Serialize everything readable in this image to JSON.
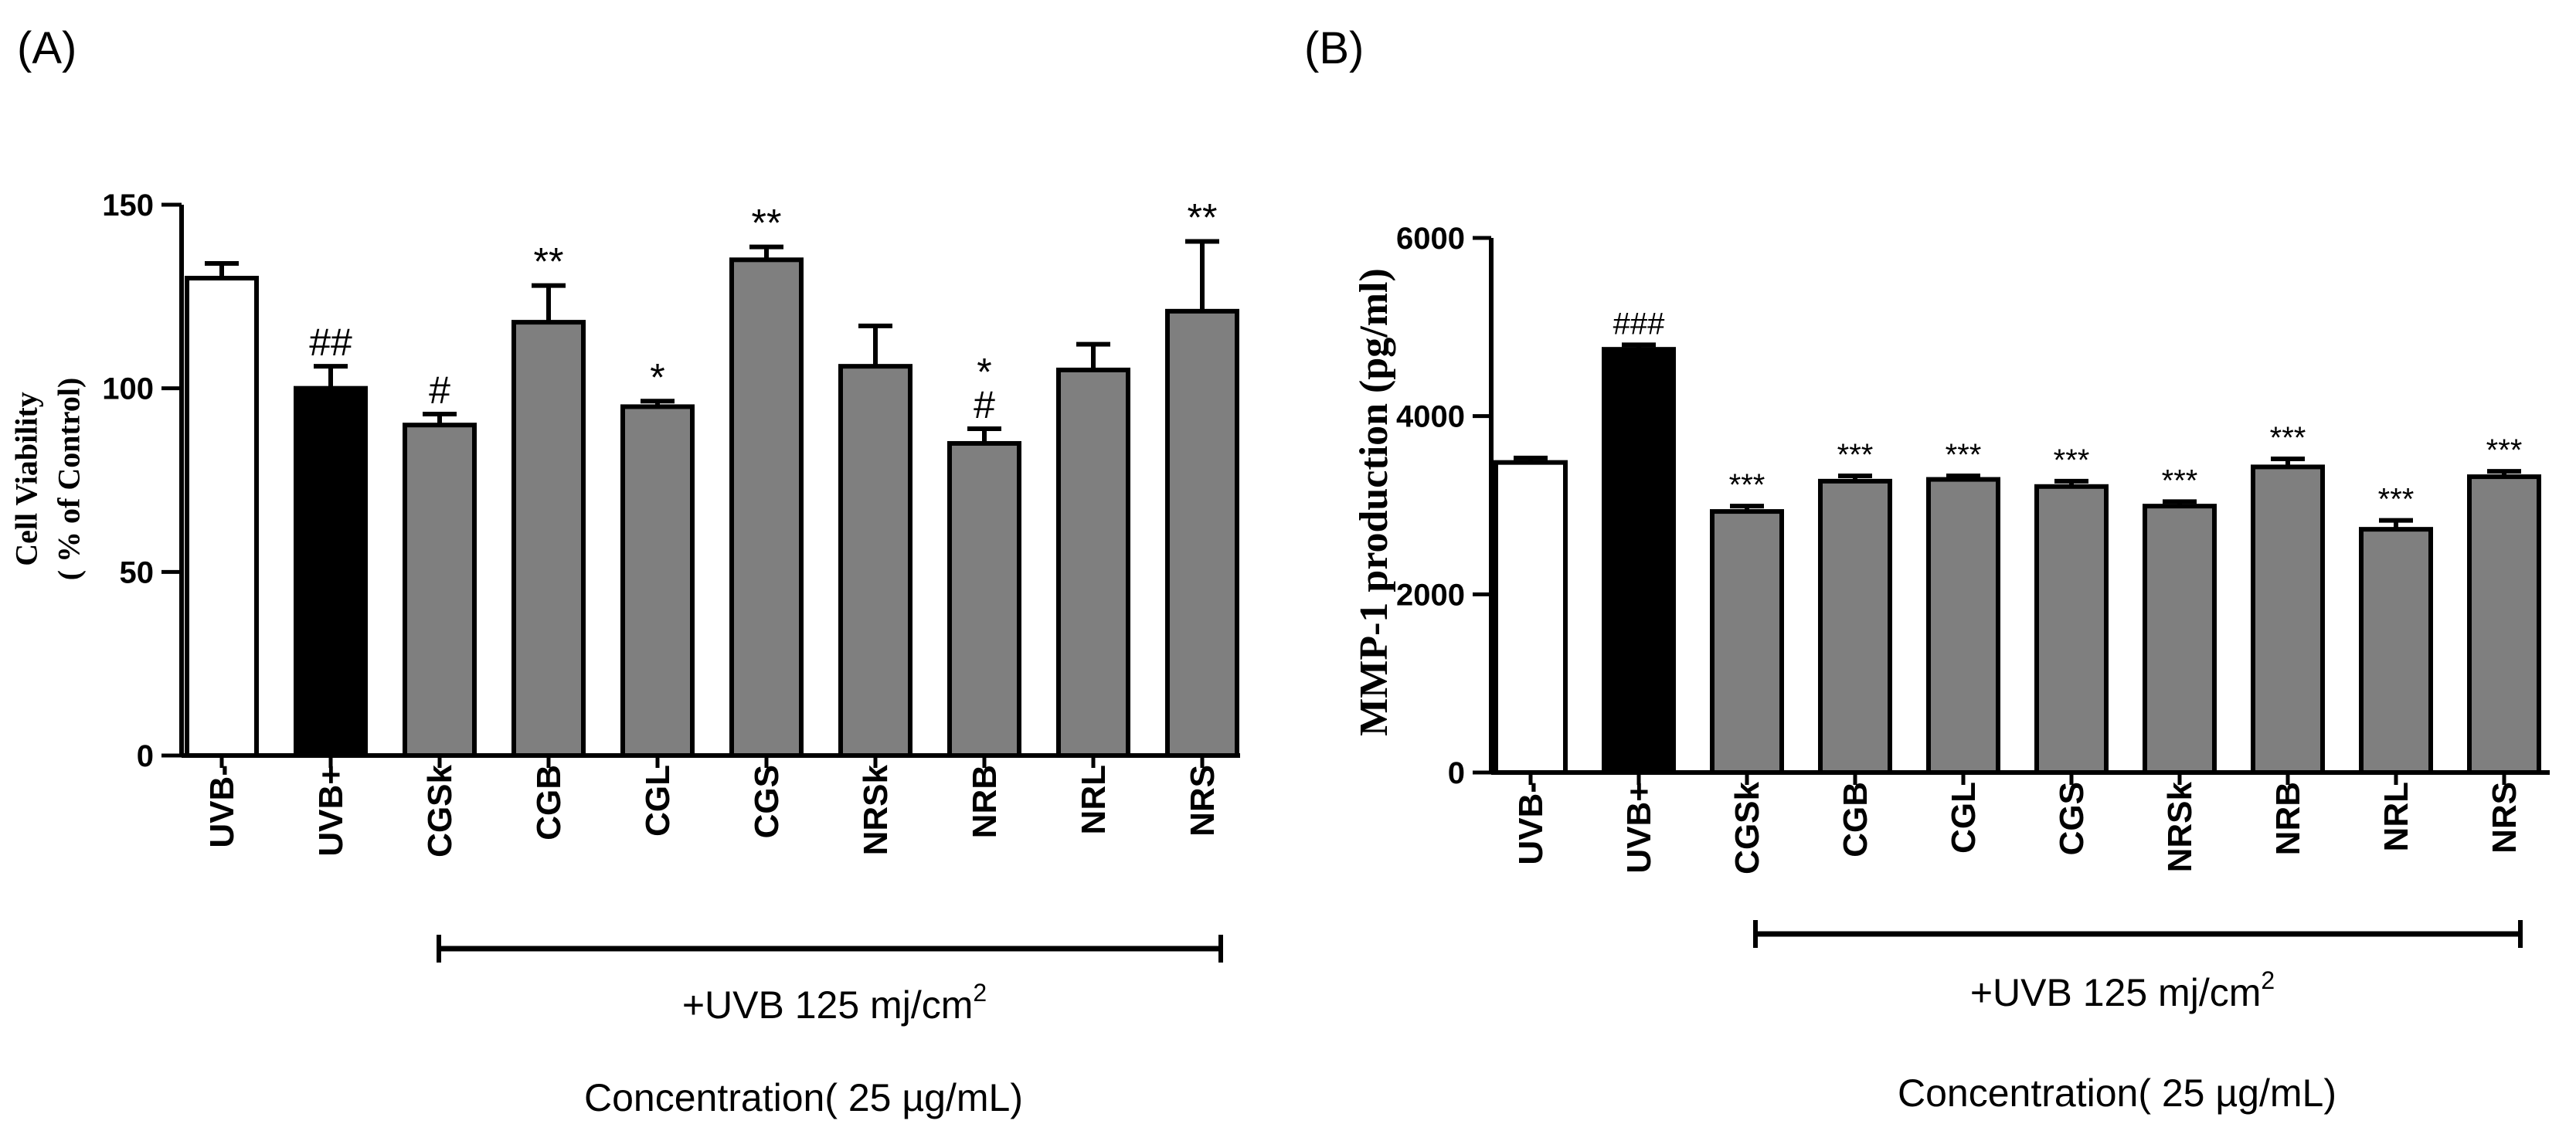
{
  "panels": [
    {
      "panel_label": "(A)",
      "group_caption": "+UVB 125 mj/cm",
      "group_caption_sup": "2",
      "concentration_label": "Concentration( 25 µg/mL)"
    },
    {
      "panel_label": "(B)",
      "group_caption": "+UVB 125 mj/cm",
      "group_caption_sup": "2",
      "concentration_label": "Concentration( 25 µg/mL)"
    }
  ],
  "colors": {
    "control_fill": "#ffffff",
    "uvb_fill": "#000000",
    "treatment_fill": "#7f7f7f",
    "stroke": "#000000"
  },
  "chart_data": [
    {
      "type": "bar",
      "title": "",
      "xlabel": "",
      "ylabel": [
        "Cell Viability",
        "( % of Control)"
      ],
      "ylim": [
        0,
        150
      ],
      "yticks": [
        0,
        50,
        100,
        150
      ],
      "categories": [
        "UVB-",
        "UVB+",
        "CGSk",
        "CGB",
        "CGL",
        "CGS",
        "NRSk",
        "NRB",
        "NRL",
        "NRS"
      ],
      "values": [
        130,
        100,
        90,
        118,
        95,
        135,
        106,
        85,
        105,
        121
      ],
      "errors": [
        4,
        6,
        3,
        10,
        1.5,
        3.5,
        11,
        4,
        7,
        19
      ],
      "fills": [
        "control",
        "uvb",
        "treatment",
        "treatment",
        "treatment",
        "treatment",
        "treatment",
        "treatment",
        "treatment",
        "treatment"
      ],
      "annotations": [
        "",
        "##",
        "#",
        "**",
        "*",
        "**",
        "",
        "*\n#",
        "",
        "**"
      ],
      "grid": false
    },
    {
      "type": "bar",
      "title": "",
      "xlabel": "",
      "ylabel": [
        "MMP-1 production (pg/ml)"
      ],
      "ylim": [
        0,
        6000
      ],
      "yticks": [
        0,
        2000,
        4000,
        6000
      ],
      "categories": [
        "UVB-",
        "UVB+",
        "CGSk",
        "CGB",
        "CGL",
        "CGS",
        "NRSk",
        "NRB",
        "NRL",
        "NRS"
      ],
      "values": [
        3480,
        4750,
        2930,
        3270,
        3290,
        3210,
        2990,
        3430,
        2730,
        3320
      ],
      "errors": [
        50,
        50,
        60,
        60,
        40,
        60,
        50,
        90,
        100,
        60
      ],
      "fills": [
        "control",
        "uvb",
        "treatment",
        "treatment",
        "treatment",
        "treatment",
        "treatment",
        "treatment",
        "treatment",
        "treatment"
      ],
      "annotations": [
        "",
        "###",
        "***",
        "***",
        "***",
        "***",
        "***",
        "***",
        "***",
        "***"
      ],
      "grid": false
    }
  ]
}
